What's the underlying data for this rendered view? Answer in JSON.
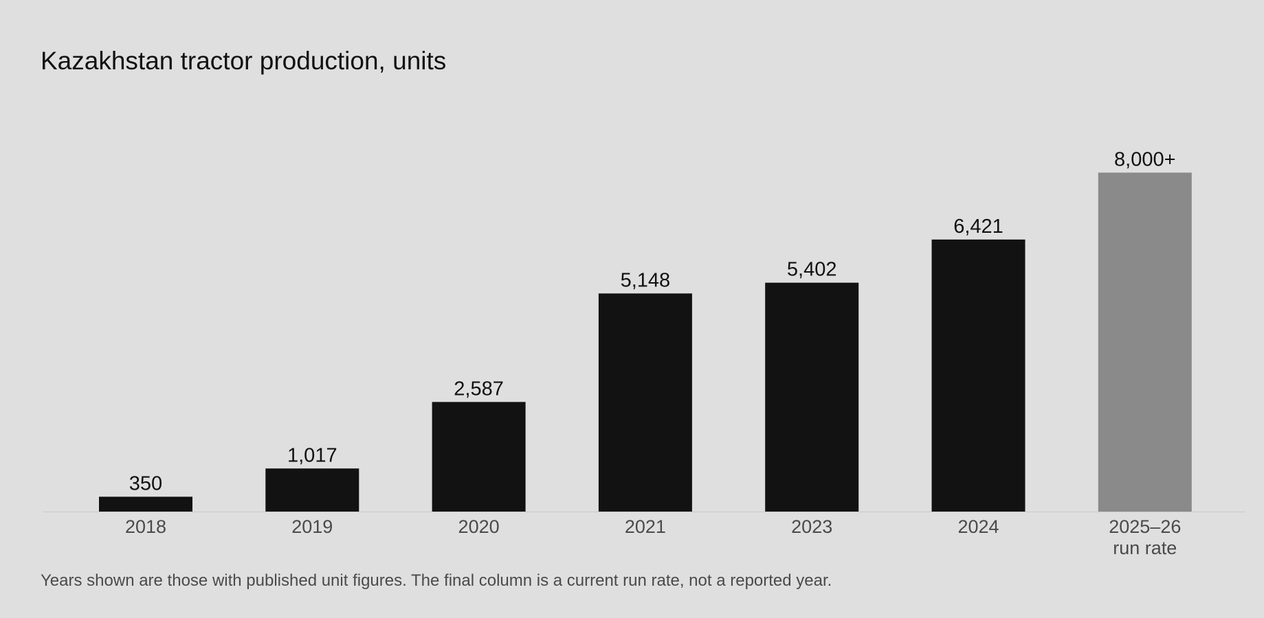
{
  "chart_data": {
    "type": "bar",
    "title": "Kazakhstan tractor production, units",
    "xlabel": "",
    "ylabel": "",
    "ylim": [
      0,
      8500
    ],
    "grid": false,
    "legend": "none",
    "categories": [
      [
        "2018"
      ],
      [
        "2019"
      ],
      [
        "2020"
      ],
      [
        "2021"
      ],
      [
        "2023"
      ],
      [
        "2024"
      ],
      [
        "2025–26",
        "run rate"
      ]
    ],
    "values": [
      350,
      1017,
      2587,
      5148,
      5402,
      6421,
      8000
    ],
    "data_labels": [
      "350",
      "1,017",
      "2,587",
      "5,148",
      "5,402",
      "6,421",
      "8,000+"
    ],
    "bar_colors": [
      "#121212",
      "#121212",
      "#121212",
      "#121212",
      "#121212",
      "#121212",
      "#8a8a8a"
    ]
  },
  "note": "Years shown are those with published unit figures. The final column is a current run rate, not a reported year.",
  "colors": {
    "background": "#dfdfdf",
    "bar": "#121212",
    "bar_highlight": "#8a8a8a",
    "baseline": "#c8c8c8"
  }
}
